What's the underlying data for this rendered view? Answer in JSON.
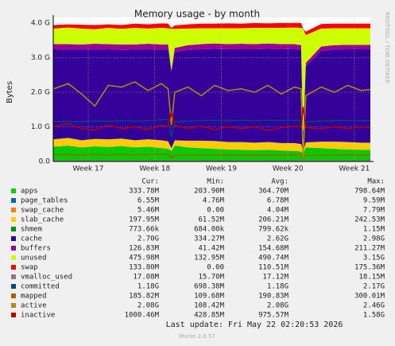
{
  "chart_data": {
    "type": "area",
    "title": "Memory usage - by month",
    "ylabel": "Bytes",
    "side_label": "RRDTOOL / TOBI OETIKER",
    "stacked": true,
    "grid": true,
    "x": [
      16.48,
      16.7,
      16.9,
      17.1,
      17.3,
      17.5,
      17.7,
      17.9,
      18.1,
      18.2,
      18.25,
      18.3,
      18.5,
      18.7,
      18.9,
      19.1,
      19.3,
      19.5,
      19.7,
      19.9,
      20.1,
      20.2,
      20.23,
      20.27,
      20.5,
      20.7,
      20.9,
      21.1,
      21.24
    ],
    "xlim": [
      16.474,
      21.24
    ],
    "xticks": [
      {
        "value": 17,
        "label": "Week 17"
      },
      {
        "value": 18,
        "label": "Week 18"
      },
      {
        "value": 19,
        "label": "Week 19"
      },
      {
        "value": 20,
        "label": "Week 20"
      },
      {
        "value": 21,
        "label": "Week 21"
      }
    ],
    "ylim": [
      0,
      4
    ],
    "yticks": [
      {
        "value": 0,
        "label": "0.0"
      },
      {
        "value": 1,
        "label": "1.0 G"
      },
      {
        "value": 2,
        "label": "2.0 G"
      },
      {
        "value": 3,
        "label": "3.0 G"
      },
      {
        "value": 4,
        "label": "4.0 G"
      }
    ],
    "columns": [
      "Cur:",
      "Min:",
      "Avg:",
      "Max:"
    ],
    "series": [
      {
        "name": "apps",
        "color": "#00cc00",
        "kind": "area",
        "stats": [
          "333.78M",
          "203.90M",
          "364.70M",
          "798.64M"
        ],
        "values": [
          0.42,
          0.45,
          0.4,
          0.43,
          0.41,
          0.44,
          0.4,
          0.42,
          0.38,
          0.36,
          0.3,
          0.45,
          0.4,
          0.38,
          0.36,
          0.34,
          0.33,
          0.32,
          0.33,
          0.31,
          0.3,
          0.28,
          0.22,
          0.4,
          0.38,
          0.36,
          0.34,
          0.33,
          0.33
        ]
      },
      {
        "name": "page_tables",
        "color": "#0066b3",
        "kind": "area",
        "stats": [
          "6.55M",
          "4.76M",
          "6.78M",
          "9.59M"
        ],
        "values": [
          0.006,
          0.006,
          0.006,
          0.006,
          0.006,
          0.006,
          0.006,
          0.006,
          0.006,
          0.006,
          0.006,
          0.006,
          0.006,
          0.006,
          0.006,
          0.006,
          0.006,
          0.006,
          0.006,
          0.006,
          0.006,
          0.006,
          0.006,
          0.006,
          0.006,
          0.006,
          0.006,
          0.006,
          0.006
        ]
      },
      {
        "name": "swap_cache",
        "color": "#ff8000",
        "kind": "area",
        "stats": [
          "5.46M",
          "0.00",
          "4.04M",
          "7.79M"
        ],
        "values": [
          0.005,
          0.005,
          0.005,
          0.005,
          0.005,
          0.005,
          0.005,
          0.005,
          0.005,
          0.005,
          0,
          0.005,
          0.005,
          0.005,
          0.005,
          0.005,
          0.005,
          0.005,
          0.005,
          0.005,
          0.005,
          0.005,
          0,
          0.005,
          0.005,
          0.005,
          0.005,
          0.005,
          0.005
        ]
      },
      {
        "name": "slab_cache",
        "color": "#ffcc00",
        "kind": "area",
        "stats": [
          "197.95M",
          "61.52M",
          "206.21M",
          "242.53M"
        ],
        "values": [
          0.21,
          0.22,
          0.2,
          0.21,
          0.22,
          0.21,
          0.2,
          0.21,
          0.22,
          0.21,
          0.08,
          0.15,
          0.19,
          0.21,
          0.22,
          0.21,
          0.22,
          0.21,
          0.22,
          0.21,
          0.22,
          0.21,
          0.06,
          0.14,
          0.18,
          0.2,
          0.21,
          0.2,
          0.2
        ]
      },
      {
        "name": "shmem",
        "color": "#008f00",
        "kind": "area",
        "stats": [
          "773.66k",
          "684.00k",
          "799.62k",
          "1.15M"
        ],
        "values": [
          0.001,
          0.001,
          0.001,
          0.001,
          0.001,
          0.001,
          0.001,
          0.001,
          0.001,
          0.001,
          0.001,
          0.001,
          0.001,
          0.001,
          0.001,
          0.001,
          0.001,
          0.001,
          0.001,
          0.001,
          0.001,
          0.001,
          0.001,
          0.001,
          0.001,
          0.001,
          0.001,
          0.001,
          0.001
        ]
      },
      {
        "name": "cache",
        "color": "#330099",
        "kind": "area",
        "stats": [
          "2.70G",
          "334.27M",
          "2.62G",
          "2.98G"
        ],
        "values": [
          2.6,
          2.55,
          2.62,
          2.58,
          2.6,
          2.56,
          2.62,
          2.6,
          2.62,
          2.65,
          2.2,
          2.55,
          2.62,
          2.64,
          2.66,
          2.68,
          2.68,
          2.7,
          2.69,
          2.71,
          2.72,
          2.72,
          0.4,
          2.2,
          2.62,
          2.66,
          2.68,
          2.7,
          2.7
        ]
      },
      {
        "name": "buffers",
        "color": "#990099",
        "kind": "area",
        "stats": [
          "126.83M",
          "41.42M",
          "154.68M",
          "211.27M"
        ],
        "values": [
          0.15,
          0.16,
          0.15,
          0.17,
          0.15,
          0.16,
          0.15,
          0.16,
          0.15,
          0.15,
          0.05,
          0.12,
          0.14,
          0.15,
          0.16,
          0.15,
          0.16,
          0.15,
          0.16,
          0.15,
          0.14,
          0.14,
          0.04,
          0.1,
          0.13,
          0.13,
          0.13,
          0.13,
          0.13
        ]
      },
      {
        "name": "unused",
        "color": "#ccff00",
        "kind": "area",
        "stats": [
          "475.98M",
          "132.95M",
          "490.74M",
          "3.15G"
        ],
        "values": [
          0.45,
          0.48,
          0.46,
          0.42,
          0.47,
          0.45,
          0.48,
          0.44,
          0.48,
          0.47,
          1.2,
          0.55,
          0.48,
          0.46,
          0.44,
          0.46,
          0.45,
          0.47,
          0.45,
          0.47,
          0.48,
          0.5,
          3.1,
          0.8,
          0.52,
          0.49,
          0.48,
          0.48,
          0.48
        ]
      },
      {
        "name": "swap",
        "color": "#ff0000",
        "kind": "area",
        "stats": [
          "133.80M",
          "0.00",
          "110.51M",
          "175.36M"
        ],
        "values": [
          0.1,
          0.09,
          0.11,
          0.12,
          0.1,
          0.11,
          0.12,
          0.12,
          0.13,
          0.13,
          0.02,
          0.1,
          0.12,
          0.13,
          0.13,
          0.14,
          0.13,
          0.14,
          0.13,
          0.14,
          0.13,
          0.14,
          0.0,
          0.1,
          0.13,
          0.13,
          0.13,
          0.13,
          0.13
        ]
      },
      {
        "name": "vmalloc_used",
        "color": "#808080",
        "kind": "line",
        "stats": [
          "17.08M",
          "15.70M",
          "17.12M",
          "18.15M"
        ],
        "values": [
          0.017,
          0.017,
          0.017,
          0.017,
          0.017,
          0.017,
          0.017,
          0.017,
          0.017,
          0.017,
          0.016,
          0.017,
          0.017,
          0.017,
          0.017,
          0.017,
          0.017,
          0.017,
          0.017,
          0.017,
          0.017,
          0.017,
          0.016,
          0.017,
          0.017,
          0.017,
          0.017,
          0.017,
          0.017
        ]
      },
      {
        "name": "committed",
        "color": "#00487d",
        "kind": "line",
        "stats": [
          "1.18G",
          "698.38M",
          "1.18G",
          "2.17G"
        ],
        "values": [
          1.15,
          1.16,
          1.15,
          1.17,
          1.16,
          1.18,
          1.16,
          1.18,
          1.2,
          1.22,
          0.7,
          1.15,
          1.17,
          1.18,
          1.19,
          1.18,
          1.19,
          1.18,
          1.19,
          1.18,
          1.19,
          1.2,
          0.75,
          1.15,
          1.17,
          1.18,
          1.18,
          1.18,
          1.18
        ]
      },
      {
        "name": "mapped",
        "color": "#b35a00",
        "kind": "line",
        "stats": [
          "185.82M",
          "109.68M",
          "190.83M",
          "300.01M"
        ],
        "values": [
          0.19,
          0.2,
          0.19,
          0.2,
          0.19,
          0.2,
          0.19,
          0.2,
          0.21,
          0.22,
          0.11,
          0.18,
          0.19,
          0.19,
          0.19,
          0.19,
          0.19,
          0.19,
          0.19,
          0.19,
          0.19,
          0.19,
          0.12,
          0.18,
          0.19,
          0.19,
          0.19,
          0.19,
          0.19
        ]
      },
      {
        "name": "active",
        "color": "#b38f00",
        "kind": "line",
        "stats": [
          "2.08G",
          "108.42M",
          "2.08G",
          "2.46G"
        ],
        "values": [
          2.1,
          2.25,
          1.95,
          1.6,
          2.2,
          2.15,
          2.3,
          2.05,
          2.25,
          2.1,
          1.05,
          2.0,
          2.15,
          1.9,
          2.2,
          2.05,
          2.1,
          2.0,
          2.2,
          1.95,
          2.15,
          2.1,
          0.11,
          1.9,
          2.15,
          2.0,
          2.2,
          2.05,
          2.08
        ]
      },
      {
        "name": "inactive",
        "color": "#b30000",
        "kind": "line",
        "stats": [
          "1000.46M",
          "428.85M",
          "975.57M",
          "1.58G"
        ],
        "values": [
          1.0,
          1.1,
          0.95,
          0.9,
          1.05,
          0.95,
          1.0,
          0.92,
          1.05,
          1.0,
          1.45,
          1.05,
          0.95,
          1.02,
          0.92,
          1.0,
          0.95,
          1.0,
          0.9,
          0.98,
          1.02,
          1.0,
          1.58,
          0.98,
          0.95,
          1.0,
          0.95,
          1.0,
          0.98
        ]
      }
    ],
    "footer": "Last update: Fri May 22 02:20:53 2026",
    "version": "Munin 2.0.57"
  }
}
